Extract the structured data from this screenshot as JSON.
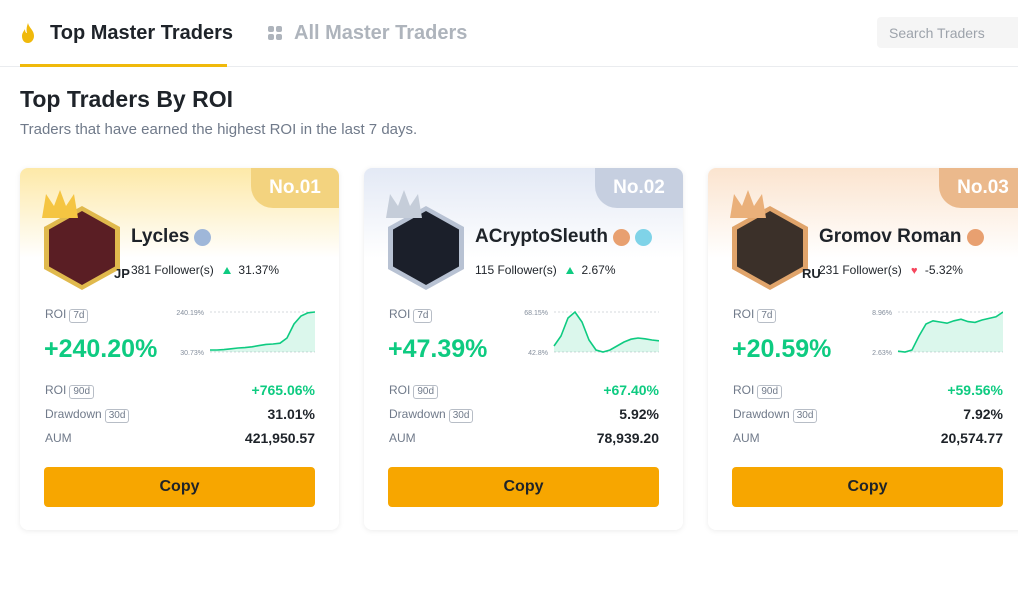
{
  "tabs": {
    "top_label": "Top Master Traders",
    "all_label": "All Master Traders"
  },
  "search": {
    "placeholder": "Search Traders"
  },
  "section": {
    "title": "Top Traders By ROI",
    "subtitle": "Traders that have earned the highest ROI in the last 7 days."
  },
  "labels": {
    "roi": "ROI",
    "roi_7d": "7d",
    "roi_90d": "90d",
    "drawdown": "Drawdown",
    "drawdown_30d": "30d",
    "aum": "AUM",
    "followers_suffix": "Follower(s)",
    "copy": "Copy"
  },
  "traders": [
    {
      "rank": "No.01",
      "name": "Lycles",
      "country": "JP",
      "followers": "381 Follower(s)",
      "follower_change": "31.37%",
      "follower_trend": "up",
      "roi_7d": "+240.20%",
      "chart_max": "240.19%",
      "chart_min": "30.73%",
      "roi_90d": "+765.06%",
      "drawdown_30d": "31.01%",
      "aum": "421,950.57",
      "band_color": "#fde9a8",
      "rank_color": "#f3d37f",
      "spark": [
        0.05,
        0.05,
        0.06,
        0.08,
        0.1,
        0.11,
        0.13,
        0.16,
        0.19,
        0.2,
        0.22,
        0.35,
        0.7,
        0.9,
        0.98,
        1.0
      ]
    },
    {
      "rank": "No.02",
      "name": "ACryptoSleuth",
      "country": "",
      "followers": "115 Follower(s)",
      "follower_change": "2.67%",
      "follower_trend": "up",
      "roi_7d": "+47.39%",
      "chart_max": "68.15%",
      "chart_min": "42.8%",
      "roi_90d": "+67.40%",
      "drawdown_30d": "5.92%",
      "aum": "78,939.20",
      "band_color": "#e3e9f5",
      "rank_color": "#c6cfe0",
      "spark": [
        0.15,
        0.4,
        0.85,
        1.0,
        0.75,
        0.3,
        0.05,
        0.0,
        0.05,
        0.15,
        0.25,
        0.32,
        0.35,
        0.33,
        0.3,
        0.28
      ]
    },
    {
      "rank": "No.03",
      "name": "Gromov Roman",
      "country": "RU",
      "followers": "231 Follower(s)",
      "follower_change": "-5.32%",
      "follower_trend": "down",
      "roi_7d": "+20.59%",
      "chart_max": "8.96%",
      "chart_min": "2.63%",
      "roi_90d": "+59.56%",
      "drawdown_30d": "7.92%",
      "aum": "20,574.77",
      "band_color": "#fbe4cf",
      "rank_color": "#ebb98c",
      "spark": [
        0.02,
        0.0,
        0.05,
        0.4,
        0.7,
        0.78,
        0.75,
        0.72,
        0.78,
        0.82,
        0.76,
        0.74,
        0.8,
        0.84,
        0.88,
        1.0
      ]
    }
  ],
  "colors": {
    "accent": "#f0b90b",
    "copy_button": "#f7a600",
    "positive": "#0ecb81",
    "negative": "#f6465d"
  },
  "icons": {
    "top_tab": "flame-icon",
    "all_tab": "grid-icon",
    "crown": "crown-icon",
    "badge": "level-badge-icon",
    "trend_up": "triangle-up-icon",
    "trend_down": "heart-icon"
  }
}
